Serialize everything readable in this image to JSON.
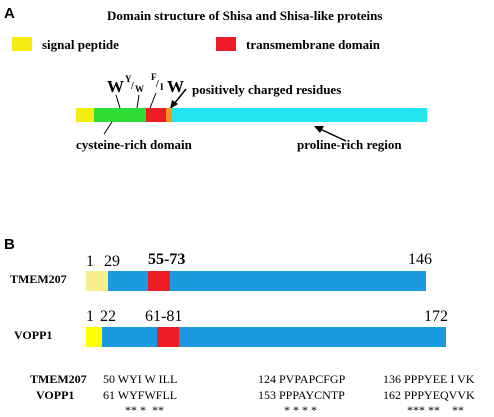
{
  "panel_a": {
    "label": "A",
    "title": "Domain structure of Shisa and Shisa-like proteins",
    "legend": {
      "signal_label": "signal peptide",
      "tm_label": "transmembrane domain"
    },
    "colors": {
      "signal": "#f4ec12",
      "cysteine": "#2fdc36",
      "tm": "#ee1c24",
      "charged": "#f7941d",
      "proline": "#24e4ef"
    },
    "motif": {
      "w1": "W",
      "y_sup": "Y",
      "slash1": "/",
      "w_sub": "W",
      "f_sup": "F",
      "slash2": "/",
      "i_sub": "I",
      "w2": "W"
    },
    "annotations": {
      "charged": "positively charged residues",
      "cysteine": "cysteine-rich domain",
      "proline": "proline-rich region"
    }
  },
  "panel_b": {
    "label": "B",
    "colors": {
      "signal": "#ffff00",
      "signal_light": "#f5f08c",
      "tm": "#ee1c24",
      "body": "#1b9ae0"
    },
    "proteins": [
      {
        "name": "TMEM207",
        "n_start": "1",
        "signal_end": "29",
        "tm_range": "55-73",
        "length_label": "146"
      },
      {
        "name": "VOPP1",
        "n_start": "1",
        "signal_end": "22",
        "tm_range": "61-81",
        "length_label": "172"
      }
    ],
    "alignment": {
      "rows": [
        {
          "name": "TMEM207",
          "seg1": "50 WYI W ILL",
          "seg2": "124 PVPAPCFGP",
          "seg3": "136 PPPYEE I VK"
        },
        {
          "name": "VOPP1",
          "seg1": "61 WYFWFLL",
          "seg2": "153 PPPAYCNTP",
          "seg3": "162 PPPYEQVVK"
        }
      ],
      "stars1": "** *  **",
      "stars2": "* * * *",
      "stars3": "*** **    **"
    }
  }
}
